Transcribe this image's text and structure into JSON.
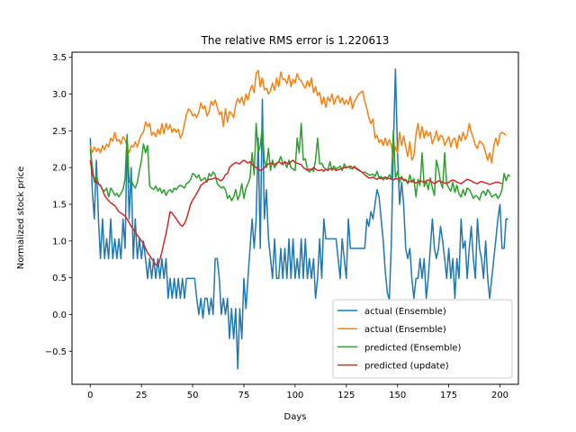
{
  "chart_data": {
    "type": "line",
    "title": "The relative RMS error is 1.220613",
    "xlabel": "Days",
    "ylabel": "Normalized stock price",
    "xlim": [
      -8.9,
      209
    ],
    "ylim": [
      -0.95,
      3.57
    ],
    "xticks": [
      0,
      25,
      50,
      75,
      100,
      125,
      150,
      175,
      200
    ],
    "yticks": [
      -0.5,
      0.0,
      0.5,
      1.0,
      1.5,
      2.0,
      2.5,
      3.0,
      3.5
    ],
    "grid": false,
    "legend_position": "lower-right",
    "series": [
      {
        "name": "actual (Ensemble)",
        "color": "#1f77b4",
        "values": [
          2.4,
          1.7,
          1.3,
          2.1,
          1.3,
          0.76,
          1.3,
          0.76,
          1.03,
          0.76,
          1.3,
          0.76,
          1.03,
          0.76,
          1.03,
          0.76,
          1.3,
          0.9,
          2.4,
          1.3,
          2.0,
          0.76,
          1.3,
          0.76,
          1.03,
          0.76,
          1.0,
          0.76,
          0.49,
          0.76,
          0.49,
          0.76,
          0.49,
          0.76,
          0.49,
          0.76,
          0.49,
          0.76,
          0.22,
          0.49,
          0.22,
          0.49,
          0.22,
          0.49,
          0.22,
          0.49,
          0.22,
          0.49,
          0.49,
          0.49,
          0.49,
          0.49,
          0.22,
          0.0,
          0.22,
          -0.05,
          0.22,
          0.22,
          0.0,
          0.22,
          0.0,
          0.76,
          0.76,
          0.49,
          0.0,
          0.22,
          0.0,
          0.22,
          -0.33,
          0.08,
          -0.33,
          0.08,
          -0.74,
          0.08,
          -0.33,
          0.49,
          0.08,
          0.49,
          0.9,
          1.3,
          0.9,
          1.3,
          2.4,
          0.9,
          2.93,
          1.3,
          1.7,
          1.03,
          0.76,
          0.49,
          1.03,
          0.49,
          0.49,
          0.9,
          0.49,
          0.9,
          0.49,
          1.03,
          0.49,
          1.03,
          0.49,
          0.76,
          0.49,
          1.03,
          0.49,
          1.03,
          0.49,
          0.76,
          0.49,
          0.76,
          0.22,
          0.49,
          1.03,
          0.49,
          1.3,
          1.03,
          1.03,
          1.03,
          1.03,
          1.03,
          1.03,
          0.76,
          0.49,
          1.03,
          0.76,
          0.49,
          1.3,
          0.9,
          0.9,
          0.9,
          0.9,
          0.9,
          0.9,
          0.9,
          0.9,
          1.3,
          1.2,
          1.4,
          1.3,
          1.5,
          1.7,
          1.6,
          1.3,
          1.0,
          0.6,
          0.3,
          0.2,
          1.0,
          2.3,
          3.34,
          2.2,
          1.5,
          1.8,
          1.5,
          0.9,
          0.76,
          0.9,
          0.49,
          0.22,
          0.49,
          0.49,
          0.76,
          0.49,
          0.76,
          0.22,
          0.49,
          0.9,
          1.3,
          0.9,
          0.76,
          0.9,
          1.2,
          1.0,
          0.76,
          0.49,
          0.9,
          0.49,
          0.76,
          0.22,
          0.76,
          0.49,
          1.3,
          0.9,
          1.0,
          0.49,
          0.9,
          1.2,
          0.76,
          0.49,
          1.3,
          0.9,
          0.76,
          0.49,
          1.0,
          0.49,
          0.22,
          0.49,
          0.76,
          1.03,
          1.3,
          1.5,
          0.9,
          0.9,
          1.3,
          1.3
        ]
      },
      {
        "name": "actual (Ensemble)",
        "color": "#ff7f0e",
        "values": [
          2.3,
          2.2,
          2.28,
          2.22,
          2.26,
          2.2,
          2.3,
          2.24,
          2.32,
          2.28,
          2.4,
          2.36,
          2.48,
          2.36,
          2.38,
          2.32,
          2.42,
          2.38,
          2.28,
          2.2,
          2.3,
          2.28,
          2.35,
          2.28,
          2.38,
          2.45,
          2.48,
          2.62,
          2.56,
          2.6,
          2.44,
          2.48,
          2.42,
          2.52,
          2.45,
          2.6,
          2.46,
          2.6,
          2.52,
          2.58,
          2.48,
          2.53,
          2.48,
          2.52,
          2.4,
          2.46,
          2.6,
          2.72,
          2.8,
          2.77,
          2.7,
          2.73,
          2.68,
          2.75,
          2.88,
          2.8,
          2.84,
          2.7,
          2.76,
          2.9,
          2.85,
          2.92,
          2.82,
          2.72,
          2.76,
          2.56,
          2.8,
          2.62,
          2.76,
          2.74,
          2.68,
          2.85,
          2.94,
          2.88,
          2.96,
          2.85,
          3.0,
          2.92,
          3.05,
          3.12,
          3.02,
          3.28,
          3.32,
          3.1,
          3.22,
          3.06,
          3.08,
          3.0,
          3.05,
          3.15,
          3.05,
          3.22,
          3.1,
          3.3,
          3.2,
          3.2,
          3.14,
          3.26,
          3.1,
          3.2,
          3.15,
          3.28,
          3.2,
          3.18,
          3.12,
          3.08,
          3.18,
          3.1,
          3.22,
          3.02,
          3.1,
          2.98,
          3.02,
          2.86,
          2.96,
          2.82,
          2.96,
          2.9,
          3.0,
          2.86,
          2.94,
          2.98,
          2.88,
          2.95,
          2.86,
          2.92,
          2.86,
          2.97,
          2.8,
          2.9,
          2.95,
          3.0,
          3.02,
          3.04,
          2.9,
          2.8,
          2.68,
          2.6,
          2.66,
          2.4,
          2.44,
          2.34,
          2.38,
          2.3,
          2.4,
          2.3,
          2.38,
          2.3,
          2.12,
          2.28,
          2.2,
          2.48,
          2.3,
          2.43,
          2.28,
          2.15,
          2.35,
          2.1,
          2.16,
          2.45,
          2.6,
          2.4,
          2.56,
          2.4,
          2.5,
          2.43,
          2.48,
          2.32,
          2.4,
          2.5,
          2.36,
          2.44,
          2.42,
          2.3,
          2.36,
          2.42,
          2.28,
          2.38,
          2.4,
          2.26,
          2.44,
          2.36,
          2.48,
          2.38,
          2.44,
          2.6,
          2.48,
          2.4,
          2.3,
          2.26,
          2.36,
          2.34,
          2.3,
          2.2,
          2.1,
          2.2,
          2.06,
          2.3,
          2.4,
          2.3,
          2.46,
          2.48,
          2.46,
          2.44
        ]
      },
      {
        "name": "predicted (Ensemble)",
        "color": "#2ca02c",
        "values": [
          2.25,
          2.02,
          1.8,
          1.9,
          1.78,
          1.75,
          1.7,
          1.68,
          1.72,
          1.6,
          1.72,
          1.68,
          1.62,
          1.65,
          1.6,
          1.65,
          1.7,
          1.85,
          2.45,
          1.8,
          1.82,
          1.76,
          1.72,
          1.8,
          1.96,
          2.1,
          2.32,
          2.2,
          2.3,
          1.75,
          1.72,
          1.7,
          1.75,
          1.68,
          1.72,
          1.65,
          1.7,
          1.62,
          1.68,
          1.7,
          1.66,
          1.72,
          1.7,
          1.74,
          1.76,
          1.74,
          1.72,
          1.78,
          1.8,
          1.84,
          1.92,
          1.9,
          1.86,
          1.9,
          1.82,
          1.84,
          1.86,
          1.8,
          1.92,
          1.88,
          1.94,
          1.9,
          1.78,
          1.75,
          1.72,
          1.74,
          1.7,
          1.58,
          1.62,
          1.55,
          1.6,
          1.7,
          1.56,
          1.63,
          1.78,
          1.58,
          1.72,
          1.78,
          1.86,
          2.2,
          1.9,
          2.6,
          2.2,
          2.3,
          2.55,
          2.1,
          2.0,
          2.26,
          1.96,
          2.1,
          2.0,
          2.05,
          2.08,
          2.15,
          2.05,
          2.08,
          2.0,
          2.1,
          2.0,
          1.98,
          1.96,
          2.4,
          2.2,
          2.6,
          2.1,
          2.12,
          1.98,
          1.94,
          1.98,
          1.95,
          2.1,
          2.4,
          2.05,
          2.06,
          2.0,
          1.98,
          1.96,
          2.08,
          1.96,
          2.02,
          1.98,
          2.0,
          2.02,
          1.96,
          2.05,
          2.0,
          2.01,
          1.99,
          1.98,
          2.02,
          1.98,
          1.96,
          1.95,
          1.93,
          1.94,
          1.92,
          1.9,
          1.9,
          1.91,
          1.88,
          1.95,
          1.86,
          1.88,
          1.83,
          1.86,
          1.84,
          1.9,
          1.85,
          2.5,
          1.85,
          1.95,
          1.8,
          1.88,
          1.82,
          1.84,
          1.78,
          1.9,
          1.8,
          1.85,
          1.6,
          1.84,
          1.76,
          2.2,
          1.74,
          1.82,
          1.7,
          1.86,
          1.72,
          1.62,
          2.1,
          1.98,
          1.8,
          1.72,
          2.2,
          1.78,
          1.72,
          1.68,
          1.8,
          1.66,
          1.76,
          1.64,
          1.6,
          1.7,
          1.62,
          1.72,
          1.7,
          1.65,
          1.58,
          1.62,
          1.6,
          1.56,
          1.65,
          1.68,
          1.62,
          1.7,
          1.66,
          1.6,
          1.62,
          1.64,
          1.58,
          1.62,
          1.7,
          1.92,
          1.82,
          1.9,
          1.88
        ]
      },
      {
        "name": "predicted (update)",
        "color": "#d62728",
        "values": [
          2.1,
          1.92,
          1.85,
          1.8,
          1.78,
          1.76,
          1.7,
          1.62,
          1.58,
          1.55,
          1.52,
          1.5,
          1.48,
          1.44,
          1.4,
          1.38,
          1.36,
          1.34,
          1.3,
          1.25,
          1.2,
          1.16,
          1.12,
          1.08,
          1.04,
          1.0,
          0.96,
          0.9,
          0.84,
          0.8,
          0.76,
          0.72,
          0.68,
          0.66,
          0.75,
          0.85,
          0.98,
          1.1,
          1.25,
          1.4,
          1.38,
          1.34,
          1.3,
          1.26,
          1.22,
          1.2,
          1.24,
          1.3,
          1.4,
          1.5,
          1.56,
          1.6,
          1.65,
          1.7,
          1.76,
          1.78,
          1.8,
          1.82,
          1.84,
          1.84,
          1.85,
          1.86,
          1.85,
          1.83,
          1.82,
          1.85,
          1.9,
          1.92,
          2.0,
          2.03,
          2.05,
          2.07,
          2.06,
          2.05,
          2.08,
          2.1,
          2.08,
          2.06,
          2.08,
          2.04,
          2.02,
          2.0,
          1.98,
          1.96,
          1.97,
          2.0,
          2.03,
          2.05,
          2.06,
          2.05,
          2.04,
          2.06,
          2.08,
          2.06,
          2.04,
          2.08,
          2.06,
          2.05,
          2.08,
          2.1,
          2.07,
          2.06,
          2.05,
          2.04,
          2.0,
          1.98,
          1.96,
          1.98,
          1.97,
          2.0,
          1.98,
          1.96,
          1.96,
          1.97,
          1.95,
          1.98,
          1.96,
          1.98,
          1.99,
          1.98,
          1.96,
          1.97,
          1.98,
          1.99,
          2.0,
          2.0,
          2.01,
          2.02,
          2.0,
          2.0,
          1.99,
          1.97,
          1.95,
          1.93,
          1.9,
          1.88,
          1.86,
          1.86,
          1.87,
          1.85,
          1.84,
          1.86,
          1.85,
          1.86,
          1.87,
          1.86,
          1.85,
          1.84,
          1.83,
          1.85,
          1.84,
          1.86,
          1.85,
          1.84,
          1.82,
          1.8,
          1.81,
          1.82,
          1.8,
          1.79,
          1.8,
          1.82,
          1.81,
          1.8,
          1.82,
          1.83,
          1.82,
          1.8,
          1.78,
          1.8,
          1.82,
          1.81,
          1.8,
          1.79,
          1.78,
          1.8,
          1.82,
          1.83,
          1.82,
          1.8,
          1.79,
          1.78,
          1.8,
          1.82,
          1.84,
          1.83,
          1.82,
          1.8,
          1.79,
          1.78,
          1.8,
          1.81,
          1.8,
          1.79,
          1.78,
          1.77,
          1.78,
          1.79,
          1.8,
          1.8,
          1.79,
          1.78
        ]
      }
    ]
  }
}
